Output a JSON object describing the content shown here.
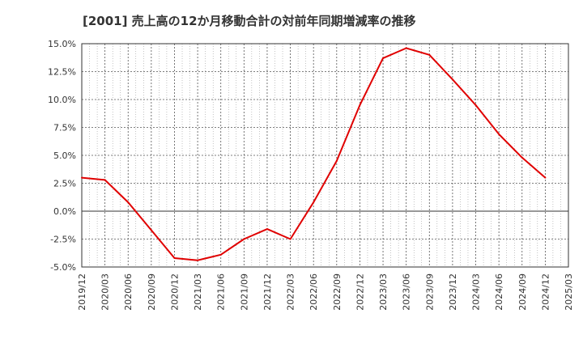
{
  "chart_data": {
    "type": "line",
    "title": "[2001]  売上高の12か月移動合計の対前年同期増減率の推移",
    "xlabel": "",
    "ylabel": "",
    "ylim": [
      -5.0,
      15.0
    ],
    "y_ticks": [
      "15.0%",
      "12.5%",
      "10.0%",
      "7.5%",
      "5.0%",
      "2.5%",
      "0.0%",
      "-2.5%",
      "-5.0%"
    ],
    "y_tick_values": [
      15.0,
      12.5,
      10.0,
      7.5,
      5.0,
      2.5,
      0.0,
      -2.5,
      -5.0
    ],
    "categories": [
      "2019/12",
      "2020/03",
      "2020/06",
      "2020/09",
      "2020/12",
      "2021/03",
      "2021/06",
      "2021/09",
      "2021/12",
      "2022/03",
      "2022/06",
      "2022/09",
      "2022/12",
      "2023/03",
      "2023/06",
      "2023/09",
      "2023/12",
      "2024/03",
      "2024/06",
      "2024/09",
      "2024/12",
      "2025/03"
    ],
    "series": [
      {
        "name": "対前年同期増減率",
        "color": "#e00000",
        "values": [
          3.0,
          2.8,
          0.8,
          -1.7,
          -4.2,
          -4.4,
          -3.9,
          -2.5,
          -1.6,
          -2.5,
          0.8,
          4.5,
          9.5,
          13.7,
          14.6,
          14.0,
          11.8,
          9.5,
          6.9,
          4.8,
          3.0,
          null
        ]
      }
    ],
    "grid": true,
    "legend": "none",
    "colors": {
      "axis": "#333333",
      "grid": "#555555",
      "line": "#e00000"
    }
  }
}
